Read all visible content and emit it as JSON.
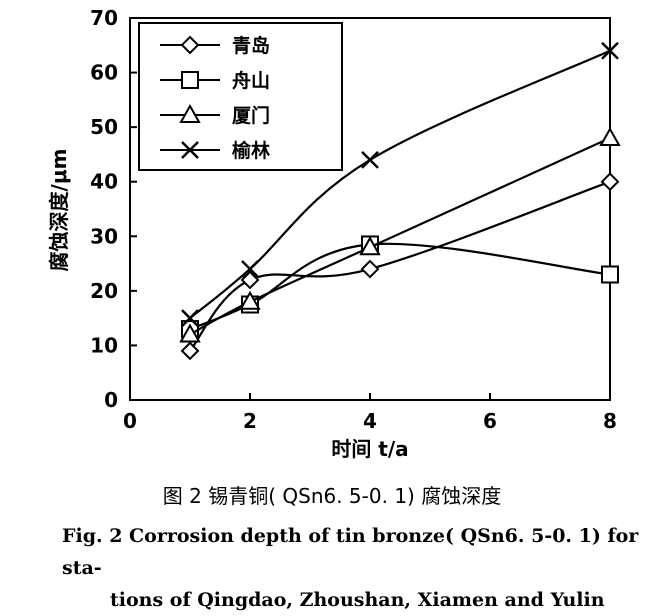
{
  "chart_data": {
    "type": "line",
    "xlabel": "时间 t/a",
    "ylabel": "腐蚀深度/μm",
    "xlim": [
      0,
      8
    ],
    "ylim": [
      0,
      70
    ],
    "xticks": [
      0,
      2,
      4,
      6,
      8
    ],
    "yticks": [
      0,
      10,
      20,
      30,
      40,
      50,
      60,
      70
    ],
    "legend_position": "top-left",
    "grid": false,
    "x": [
      1,
      2,
      4,
      8
    ],
    "series": [
      {
        "name": "青岛",
        "marker": "diamond",
        "values": [
          9,
          22,
          24,
          40
        ]
      },
      {
        "name": "舟山",
        "marker": "square",
        "values": [
          13,
          17.5,
          28.5,
          23
        ]
      },
      {
        "name": "厦门",
        "marker": "triangle",
        "values": [
          12,
          18,
          28,
          48
        ]
      },
      {
        "name": "榆林",
        "marker": "x",
        "values": [
          15,
          24,
          44,
          64
        ]
      }
    ]
  },
  "caption": {
    "cn": "图 2 锡青铜( QSn6. 5-0. 1) 腐蚀深度",
    "en_line1": "Fig. 2 Corrosion depth of tin bronze( QSn6. 5-0. 1) for sta-",
    "en_line2": "tions of Qingdao, Zhoushan, Xiamen and Yulin"
  }
}
